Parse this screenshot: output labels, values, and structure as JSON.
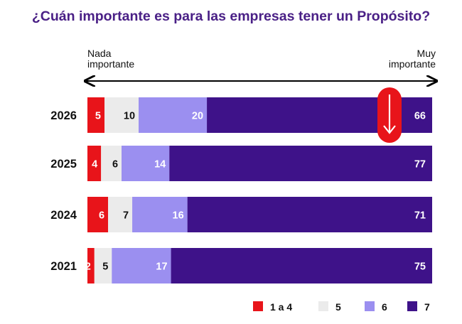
{
  "chart_data": {
    "type": "bar",
    "orientation": "horizontal",
    "stacked": true,
    "title": "¿Cuán importante es para las empresas tener un Propósito?",
    "scale": {
      "left_line1": "Nada",
      "left_line2": "importante",
      "right_line1": "Muy",
      "right_line2": "importante"
    },
    "categories": [
      "2026",
      "2025",
      "2024",
      "2021"
    ],
    "series": [
      {
        "name": "1 a 4",
        "color": "#e8141a",
        "label_color": "#ffffff",
        "values": [
          5,
          4,
          6,
          2
        ]
      },
      {
        "name": "5",
        "color": "#ebebeb",
        "label_color": "#111111",
        "values": [
          10,
          6,
          7,
          5
        ]
      },
      {
        "name": "6",
        "color": "#9b8ff0",
        "label_color": "#ffffff",
        "values": [
          20,
          14,
          16,
          17
        ]
      },
      {
        "name": "7",
        "color": "#3e1289",
        "label_color": "#ffffff",
        "values": [
          66,
          77,
          71,
          75
        ]
      }
    ],
    "legend_position": "bottom-right",
    "annotation": {
      "type": "down-arrow",
      "category": "2026",
      "series": "7",
      "color": "#e8141a"
    }
  }
}
